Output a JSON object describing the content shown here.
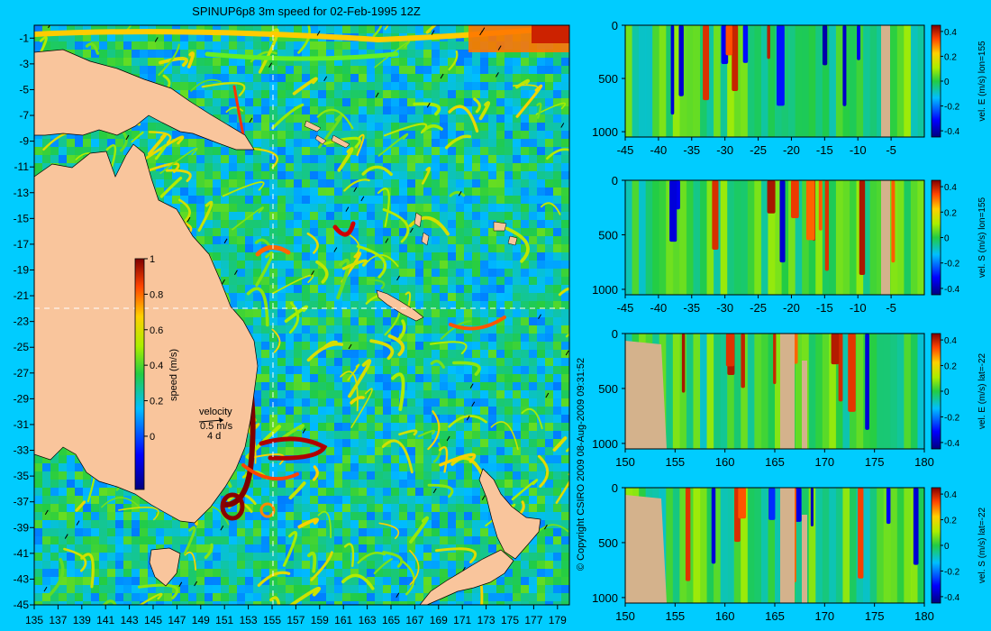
{
  "title": "SPINUP6p8 3m speed for 02-Feb-1995 12Z",
  "copyright": "© Copyright CSIRO 2009   08-Aug-2009 09:31:52",
  "colors": {
    "background": "#00ccff",
    "land": "#f9c59c",
    "land_section": "#d4b28c"
  },
  "chart_data": [
    {
      "type": "heatmap",
      "title": "SPINUP6p8 3m speed for 02-Feb-1995 12Z",
      "x_ticks": [
        "135",
        "137",
        "139",
        "141",
        "143",
        "145",
        "147",
        "149",
        "151",
        "153",
        "155",
        "157",
        "159",
        "161",
        "163",
        "165",
        "167",
        "169",
        "171",
        "173",
        "175",
        "177",
        "179"
      ],
      "y_ticks": [
        "-1",
        "-3",
        "-5",
        "-7",
        "-9",
        "-11",
        "-13",
        "-15",
        "-17",
        "-19",
        "-21",
        "-23",
        "-25",
        "-27",
        "-29",
        "-31",
        "-33",
        "-35",
        "-37",
        "-39",
        "-41",
        "-43",
        "-45"
      ],
      "xlim": [
        135,
        180
      ],
      "ylim": [
        -45,
        0
      ],
      "crosshair": {
        "lon": 155,
        "lat": -22
      },
      "colorbar": {
        "label": "speed (m/s)",
        "ticks": [
          "1",
          "0.8",
          "0.6",
          "0.4",
          "0.2",
          "0"
        ],
        "range": [
          -0.3,
          1
        ]
      },
      "velocity_key": {
        "title": "velocity",
        "speed": "0.5 m/s",
        "time": "4 d"
      }
    },
    {
      "type": "heatmap",
      "x_ticks": [
        "-45",
        "-40",
        "-35",
        "-30",
        "-25",
        "-20",
        "-15",
        "-10",
        "-5"
      ],
      "y_ticks": [
        "0",
        "500",
        "1000"
      ],
      "xlim": [
        -45,
        0
      ],
      "ylim": [
        1050,
        0
      ],
      "colorbar": {
        "label": "vel. E (m/s) lon=155",
        "ticks": [
          "0.4",
          "0.2",
          "0",
          "-0.2",
          "-0.4"
        ],
        "range": [
          -0.45,
          0.45
        ]
      }
    },
    {
      "type": "heatmap",
      "x_ticks": [
        "-45",
        "-40",
        "-35",
        "-30",
        "-25",
        "-20",
        "-15",
        "-10",
        "-5"
      ],
      "y_ticks": [
        "0",
        "500",
        "1000"
      ],
      "xlim": [
        -45,
        0
      ],
      "ylim": [
        1050,
        0
      ],
      "colorbar": {
        "label": "vel. S (m/s) lon=155",
        "ticks": [
          "0.4",
          "0.2",
          "0",
          "-0.2",
          "-0.4"
        ],
        "range": [
          -0.45,
          0.45
        ]
      }
    },
    {
      "type": "heatmap",
      "x_ticks": [
        "150",
        "155",
        "160",
        "165",
        "170",
        "175",
        "180"
      ],
      "y_ticks": [
        "0",
        "500",
        "1000"
      ],
      "xlim": [
        150,
        180
      ],
      "ylim": [
        1050,
        0
      ],
      "colorbar": {
        "label": "vel. E (m/s) lat=-22",
        "ticks": [
          "0.4",
          "0.2",
          "0",
          "-0.2",
          "-0.4"
        ],
        "range": [
          -0.45,
          0.45
        ]
      }
    },
    {
      "type": "heatmap",
      "x_ticks": [
        "150",
        "155",
        "160",
        "165",
        "170",
        "175",
        "180"
      ],
      "y_ticks": [
        "0",
        "500",
        "1000"
      ],
      "xlim": [
        150,
        180
      ],
      "ylim": [
        1050,
        0
      ],
      "colorbar": {
        "label": "vel. S (m/s) lat=-22",
        "ticks": [
          "0.4",
          "0.2",
          "0",
          "-0.2",
          "-0.4"
        ],
        "range": [
          -0.45,
          0.45
        ]
      }
    }
  ]
}
